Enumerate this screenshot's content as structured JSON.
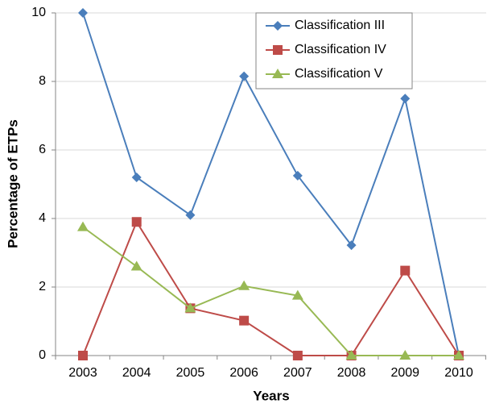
{
  "chart_data": {
    "type": "line",
    "x_label": "Years",
    "y_label": "Percentage of ETPs",
    "categories": [
      "2003",
      "2004",
      "2005",
      "2006",
      "2007",
      "2008",
      "2009",
      "2010"
    ],
    "series": [
      {
        "name": "Classification III",
        "color": "#4a7ebb",
        "marker": "diamond",
        "values": [
          10,
          5.2,
          4.1,
          8.15,
          5.25,
          3.22,
          7.5,
          0
        ]
      },
      {
        "name": "Classification IV",
        "color": "#be4b48",
        "marker": "square",
        "values": [
          0,
          3.9,
          1.38,
          1.02,
          0,
          0,
          2.48,
          0
        ]
      },
      {
        "name": "Classification V",
        "color": "#98b954",
        "marker": "triangle",
        "values": [
          3.75,
          2.6,
          1.38,
          2.03,
          1.75,
          0,
          0,
          0
        ]
      }
    ],
    "ylim": [
      0,
      10
    ],
    "yticks": [
      0,
      2,
      4,
      6,
      8,
      10
    ],
    "grid": true,
    "legend": "top-right"
  }
}
